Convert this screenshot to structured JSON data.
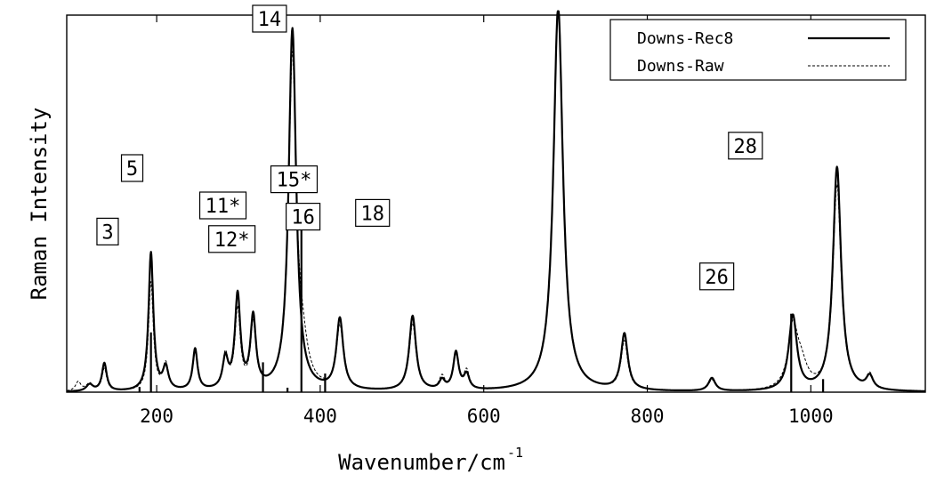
{
  "chart_data": {
    "type": "line",
    "xlabel": "Wavenumber/cm",
    "xlabel_superscript": "-1",
    "ylabel": "Raman Intensity",
    "xlim": [
      90,
      1140
    ],
    "ylim": [
      0,
      1
    ],
    "xticks": [
      200,
      400,
      600,
      800,
      1000
    ],
    "show_yticks": false,
    "grid": false,
    "legend_position": "top-right",
    "series": [
      {
        "name": "Downs-Rec8",
        "style": "solid",
        "color": "#000000",
        "peaks": [
          {
            "x": 118,
            "height": 0.018,
            "width": 5
          },
          {
            "x": 136,
            "height": 0.075,
            "width": 3.5
          },
          {
            "x": 193,
            "height": 0.37,
            "width": 3.5
          },
          {
            "x": 211,
            "height": 0.06,
            "width": 4
          },
          {
            "x": 247,
            "height": 0.11,
            "width": 3.5
          },
          {
            "x": 284,
            "height": 0.08,
            "width": 4
          },
          {
            "x": 299,
            "height": 0.25,
            "width": 4
          },
          {
            "x": 318,
            "height": 0.19,
            "width": 4
          },
          {
            "x": 366,
            "height": 0.97,
            "width": 5.5
          },
          {
            "x": 424,
            "height": 0.19,
            "width": 5
          },
          {
            "x": 513,
            "height": 0.2,
            "width": 5
          },
          {
            "x": 549,
            "height": 0.025,
            "width": 4
          },
          {
            "x": 566,
            "height": 0.1,
            "width": 4
          },
          {
            "x": 579,
            "height": 0.04,
            "width": 4
          },
          {
            "x": 691,
            "height": 1.03,
            "width": 7
          },
          {
            "x": 772,
            "height": 0.15,
            "width": 5
          },
          {
            "x": 879,
            "height": 0.035,
            "width": 5
          },
          {
            "x": 978,
            "height": 0.2,
            "width": 6
          },
          {
            "x": 1032,
            "height": 0.6,
            "width": 6
          },
          {
            "x": 1072,
            "height": 0.035,
            "width": 5
          }
        ]
      },
      {
        "name": "Downs-Raw",
        "style": "dashed",
        "color": "#000000",
        "peaks": [
          {
            "x": 104,
            "height": 0.025,
            "width": 4
          },
          {
            "x": 118,
            "height": 0.02,
            "width": 5
          },
          {
            "x": 136,
            "height": 0.06,
            "width": 3.5
          },
          {
            "x": 193,
            "height": 0.29,
            "width": 3.5
          },
          {
            "x": 211,
            "height": 0.07,
            "width": 4
          },
          {
            "x": 247,
            "height": 0.1,
            "width": 3.5
          },
          {
            "x": 284,
            "height": 0.09,
            "width": 4
          },
          {
            "x": 299,
            "height": 0.21,
            "width": 4
          },
          {
            "x": 318,
            "height": 0.17,
            "width": 4
          },
          {
            "x": 366,
            "height": 0.88,
            "width": 5.5
          },
          {
            "x": 378,
            "height": 0.09,
            "width": 8
          },
          {
            "x": 424,
            "height": 0.17,
            "width": 5
          },
          {
            "x": 513,
            "height": 0.18,
            "width": 5
          },
          {
            "x": 549,
            "height": 0.035,
            "width": 4
          },
          {
            "x": 566,
            "height": 0.09,
            "width": 4
          },
          {
            "x": 579,
            "height": 0.05,
            "width": 4
          },
          {
            "x": 691,
            "height": 1.02,
            "width": 7
          },
          {
            "x": 772,
            "height": 0.13,
            "width": 5
          },
          {
            "x": 879,
            "height": 0.03,
            "width": 5
          },
          {
            "x": 978,
            "height": 0.16,
            "width": 7
          },
          {
            "x": 988,
            "height": 0.06,
            "width": 9
          },
          {
            "x": 1032,
            "height": 0.55,
            "width": 6
          },
          {
            "x": 1072,
            "height": 0.04,
            "width": 5
          }
        ]
      }
    ],
    "reference_lines": [
      {
        "x": 179,
        "height": 0.014
      },
      {
        "x": 193,
        "height": 0.16
      },
      {
        "x": 330,
        "height": 0.08
      },
      {
        "x": 360,
        "height": 0.012
      },
      {
        "x": 377,
        "height": 0.46
      },
      {
        "x": 406,
        "height": 0.05
      },
      {
        "x": 976,
        "height": 0.21
      },
      {
        "x": 1015,
        "height": 0.035
      }
    ],
    "annotations": [
      {
        "text": "3",
        "x": 140,
        "y": 0.43
      },
      {
        "text": "5",
        "x": 170,
        "y": 0.6
      },
      {
        "text": "11*",
        "x": 281,
        "y": 0.5
      },
      {
        "text": "12*",
        "x": 292,
        "y": 0.41
      },
      {
        "text": "14",
        "x": 338,
        "y": 1.0
      },
      {
        "text": "15*",
        "x": 368,
        "y": 0.57
      },
      {
        "text": "16",
        "x": 379,
        "y": 0.47
      },
      {
        "text": "18",
        "x": 464,
        "y": 0.48
      },
      {
        "text": "26",
        "x": 885,
        "y": 0.31
      },
      {
        "text": "28",
        "x": 920,
        "y": 0.66
      }
    ]
  }
}
